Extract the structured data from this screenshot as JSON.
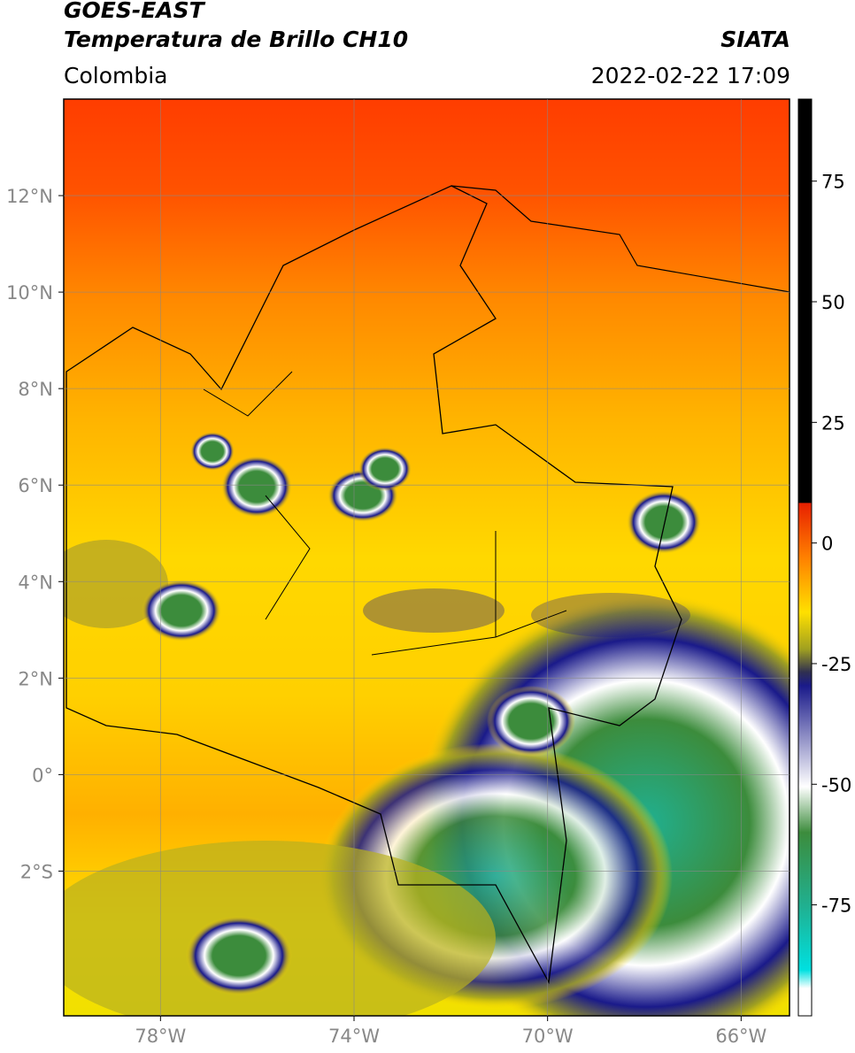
{
  "header": {
    "title_line1": "GOES-EAST",
    "title_line2": "Temperatura de Brillo CH10",
    "region": "Colombia",
    "source": "SIATA",
    "timestamp": "2022-02-22 17:09"
  },
  "map": {
    "xlim": [
      -80,
      -65
    ],
    "ylim": [
      -5,
      14
    ],
    "grid": true,
    "xticks": [
      {
        "value": -78,
        "label": "78°W"
      },
      {
        "value": -74,
        "label": "74°W"
      },
      {
        "value": -70,
        "label": "70°W"
      },
      {
        "value": -66,
        "label": "66°W"
      }
    ],
    "yticks": [
      {
        "value": 12,
        "label": "12°N"
      },
      {
        "value": 10,
        "label": "10°N"
      },
      {
        "value": 8,
        "label": "8°N"
      },
      {
        "value": 6,
        "label": "6°N"
      },
      {
        "value": 4,
        "label": "4°N"
      },
      {
        "value": 2,
        "label": "2°N"
      },
      {
        "value": 0,
        "label": "0°"
      },
      {
        "value": -2,
        "label": "2°S"
      }
    ]
  },
  "colorbar": {
    "range": [
      -98,
      92
    ],
    "ticks": [
      75,
      50,
      25,
      0,
      -25,
      -50,
      -75
    ]
  }
}
